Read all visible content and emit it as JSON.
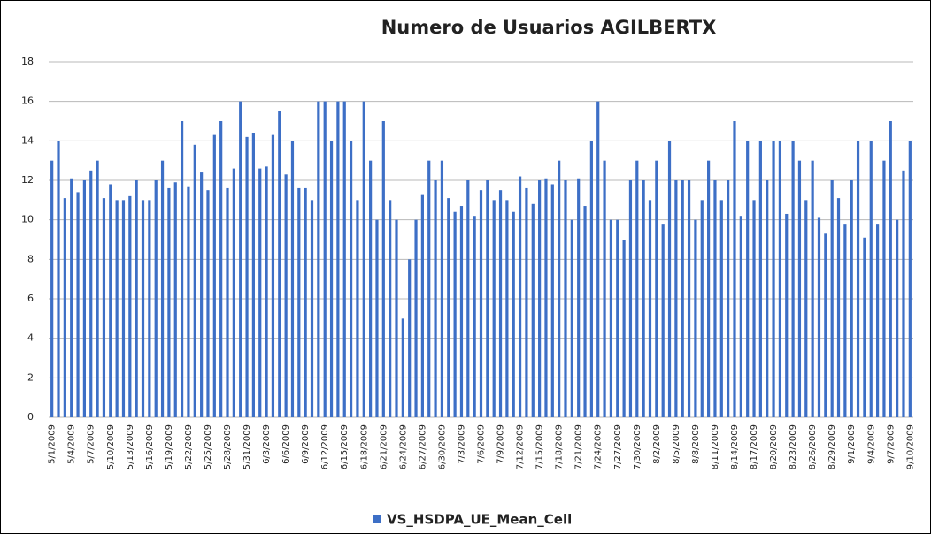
{
  "chart_data": {
    "type": "bar",
    "title": "Numero de Usuarios AGILBERTX",
    "categories": [
      "5/1/2009",
      null,
      null,
      "5/4/2009",
      null,
      null,
      "5/7/2009",
      null,
      null,
      "5/10/2009",
      null,
      null,
      "5/13/2009",
      null,
      null,
      "5/16/2009",
      null,
      null,
      "5/19/2009",
      null,
      null,
      "5/22/2009",
      null,
      null,
      "5/25/2009",
      null,
      null,
      "5/28/2009",
      null,
      null,
      "5/31/2009",
      null,
      null,
      "6/3/2009",
      null,
      null,
      "6/6/2009",
      null,
      null,
      "6/9/2009",
      null,
      null,
      "6/12/2009",
      null,
      null,
      "6/15/2009",
      null,
      null,
      "6/18/2009",
      null,
      null,
      "6/21/2009",
      null,
      null,
      "6/24/2009",
      null,
      null,
      "6/27/2009",
      null,
      null,
      "6/30/2009",
      null,
      null,
      "7/3/2009",
      null,
      null,
      "7/6/2009",
      null,
      null,
      "7/9/2009",
      null,
      null,
      "7/12/2009",
      null,
      null,
      "7/15/2009",
      null,
      null,
      "7/18/2009",
      null,
      null,
      "7/21/2009",
      null,
      null,
      "7/24/2009",
      null,
      null,
      "7/27/2009",
      null,
      null,
      "7/30/2009",
      null,
      null,
      "8/2/2009",
      null,
      null,
      "8/5/2009",
      null,
      null,
      "8/8/2009",
      null,
      null,
      "8/11/2009",
      null,
      null,
      "8/14/2009",
      null,
      null,
      "8/17/2009",
      null,
      null,
      "8/20/2009",
      null,
      null,
      "8/23/2009",
      null,
      null,
      "8/26/2009",
      null,
      null,
      "8/29/2009",
      null,
      null,
      "9/1/2009",
      null,
      null,
      "9/4/2009",
      null,
      null,
      "9/7/2009",
      null,
      null,
      "9/10/2009"
    ],
    "series": [
      {
        "name": "VS_HSDPA_UE_Mean_Cell",
        "color": "#3d6fc6",
        "values": [
          13,
          14,
          11.1,
          12.1,
          11.4,
          12,
          12.5,
          13,
          11.1,
          11.8,
          11,
          11,
          11.2,
          12,
          11,
          11,
          12,
          13,
          11.6,
          11.9,
          15,
          11.7,
          13.8,
          12.4,
          11.5,
          14.3,
          15,
          11.6,
          12.6,
          16,
          14.2,
          14.4,
          12.6,
          12.7,
          14.3,
          15.5,
          12.3,
          14,
          11.6,
          11.6,
          11,
          16,
          16,
          14,
          16,
          16,
          14,
          11,
          16,
          13,
          10,
          15,
          11,
          10,
          5,
          8,
          10,
          11.3,
          13,
          12,
          13,
          11.1,
          10.4,
          10.7,
          12,
          10.2,
          11.5,
          12,
          11,
          11.5,
          11,
          10.4,
          12.2,
          11.6,
          10.8,
          12,
          12.1,
          11.8,
          13,
          12,
          10,
          12.1,
          10.7,
          14,
          16,
          13,
          10,
          10,
          9,
          12,
          13,
          12,
          11,
          13,
          9.8,
          14,
          12,
          12,
          12,
          10,
          11,
          13,
          12,
          11,
          12,
          15,
          10.2,
          14,
          11,
          14,
          12,
          14,
          14,
          10.3,
          14,
          13,
          11,
          13,
          10.1,
          9.3,
          12,
          11.1,
          9.8,
          12,
          14,
          9.1,
          14,
          9.8,
          13,
          15,
          10,
          12.5,
          14
        ]
      }
    ],
    "ylim": [
      0,
      18
    ],
    "yticks": [
      0,
      2,
      4,
      6,
      8,
      10,
      12,
      14,
      16,
      18
    ],
    "grid": true,
    "legend": "bottom"
  }
}
